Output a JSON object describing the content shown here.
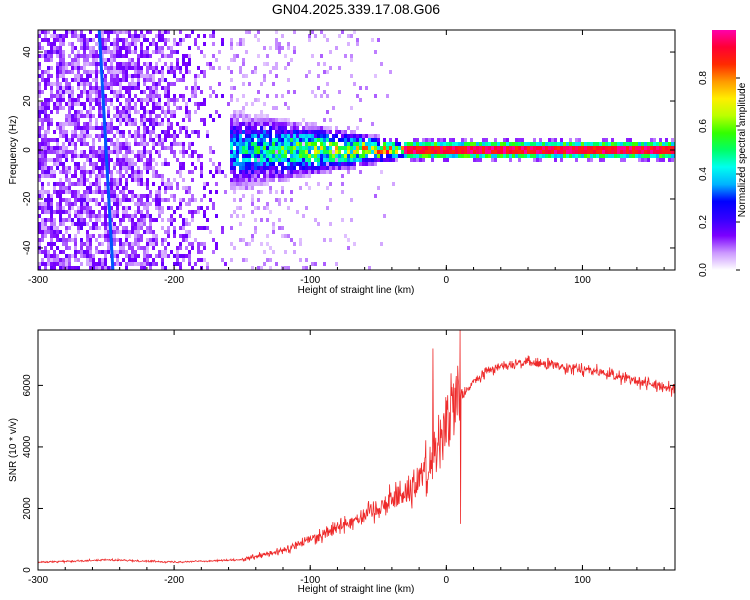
{
  "figure_title": "GN04.2025.339.17.08.G06",
  "colors": {
    "snr_line": "#ee2a2a",
    "frame": "#000000",
    "colormap": [
      "#ffffff",
      "#cc99ff",
      "#7b00ff",
      "#3300ff",
      "#0000ff",
      "#00b3ff",
      "#00ffee",
      "#00ff66",
      "#33ff00",
      "#bbff00",
      "#ffee00",
      "#ff9900",
      "#ff2a00",
      "#ff0033",
      "#ff00aa"
    ]
  },
  "chart_data": [
    {
      "id": "spectrogram",
      "type": "heatmap",
      "xlabel": "Height of straight line (km)",
      "ylabel": "Frequency (Hz)",
      "xlim": [
        -300,
        168
      ],
      "ylim": [
        -49,
        49
      ],
      "x_ticks": [
        -300,
        -200,
        -100,
        0,
        100
      ],
      "y_ticks": [
        -40,
        -20,
        0,
        20,
        40
      ],
      "colorbar": {
        "label": "Normalized spectral amplitude",
        "range": [
          0,
          1
        ],
        "ticks": [
          "0.0",
          "0.2",
          "0.4",
          "0.6",
          "0.8"
        ],
        "tick_values": [
          0.0,
          0.2,
          0.4,
          0.6,
          0.8
        ]
      },
      "features": {
        "diffuse_noise_region_km": [
          -300,
          -160
        ],
        "spreading_region_km": [
          -160,
          -30
        ],
        "tone_region_km": [
          -30,
          168
        ],
        "tone_frequency_hz": 0,
        "slanted_streak": {
          "start": {
            "x": -255,
            "y": 49
          },
          "end": {
            "x": -245,
            "y": -49
          }
        }
      }
    },
    {
      "id": "snr",
      "type": "line",
      "xlabel": "Height of straight line (km)",
      "ylabel": "SNR (10 * v/v)",
      "xlim": [
        -300,
        168
      ],
      "ylim": [
        0,
        7800
      ],
      "x_ticks": [
        -300,
        -200,
        -100,
        0,
        100
      ],
      "y_ticks": [
        0,
        2000,
        4000,
        6000
      ],
      "profile": {
        "x": [
          -300,
          -250,
          -200,
          -150,
          -120,
          -100,
          -80,
          -60,
          -40,
          -25,
          -10,
          -5,
          0,
          10,
          20,
          30,
          40,
          60,
          80,
          100,
          120,
          140,
          168
        ],
        "y": [
          250,
          330,
          260,
          330,
          620,
          1000,
          1400,
          1800,
          2300,
          2700,
          3600,
          4300,
          4800,
          5600,
          6100,
          6450,
          6650,
          6750,
          6650,
          6550,
          6350,
          6150,
          5850
        ]
      },
      "spikes": [
        {
          "x": -10,
          "y": 7200
        },
        {
          "x": 10,
          "y": 7800
        },
        {
          "x": 10.5,
          "y": 1500
        }
      ]
    }
  ]
}
